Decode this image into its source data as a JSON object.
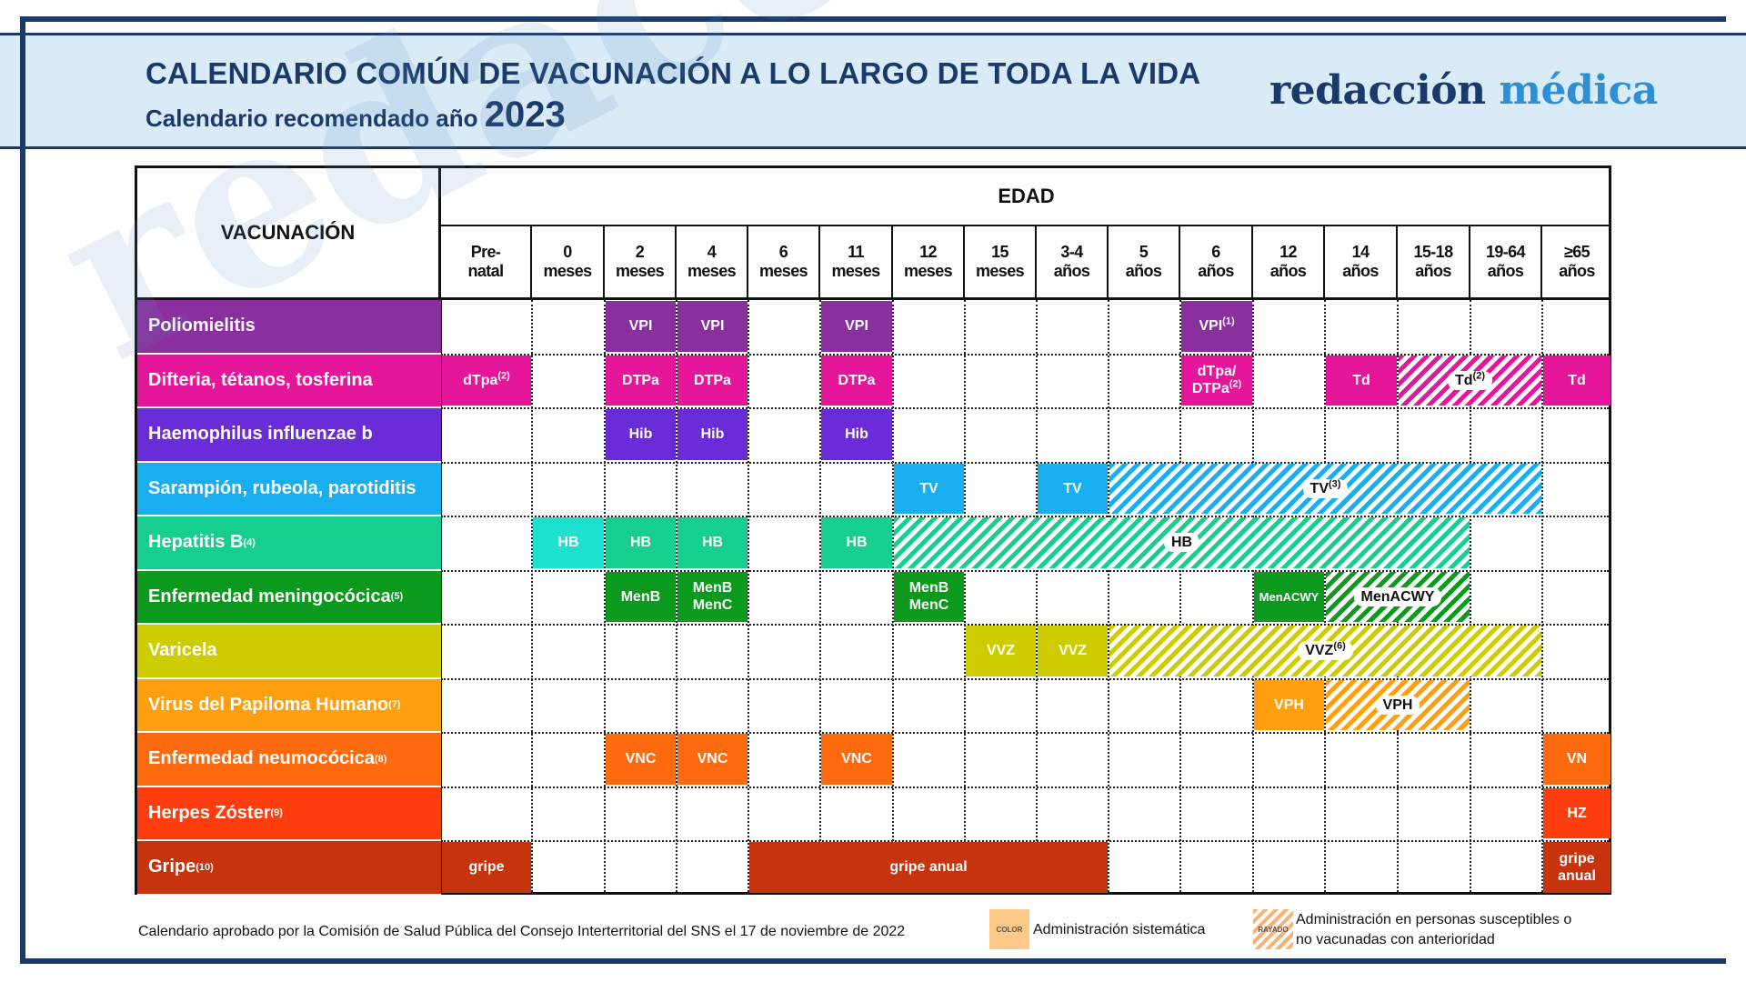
{
  "header": {
    "title": "CALENDARIO COMÚN DE VACUNACIÓN A LO LARGO DE TODA LA VIDA",
    "subtitle": "Calendario recomendado año",
    "year": "2023",
    "logo_part1": "redacción",
    "logo_part2": "médica"
  },
  "watermark": "redacción médica",
  "table": {
    "vac_header": "VACUNACIÓN",
    "edad_header": "EDAD",
    "ages": [
      {
        "l1": "Pre-",
        "l2": "natal"
      },
      {
        "l1": "0",
        "l2": "meses"
      },
      {
        "l1": "2",
        "l2": "meses"
      },
      {
        "l1": "4",
        "l2": "meses"
      },
      {
        "l1": "6",
        "l2": "meses"
      },
      {
        "l1": "11",
        "l2": "meses"
      },
      {
        "l1": "12",
        "l2": "meses"
      },
      {
        "l1": "15",
        "l2": "meses"
      },
      {
        "l1": "3-4",
        "l2": "años"
      },
      {
        "l1": "5",
        "l2": "años"
      },
      {
        "l1": "6",
        "l2": "años"
      },
      {
        "l1": "12",
        "l2": "años"
      },
      {
        "l1": "14",
        "l2": "años"
      },
      {
        "l1": "15-18",
        "l2": "años"
      },
      {
        "l1": "19-64",
        "l2": "años"
      },
      {
        "l1": "≥65",
        "l2": "años"
      }
    ],
    "rows": [
      {
        "label": "Poliomielitis",
        "sup": "",
        "color": "#8a2f9e"
      },
      {
        "label": "Difteria, tétanos, tosferina",
        "sup": "",
        "color": "#e6169b"
      },
      {
        "label": "Haemophilus influenzae b",
        "sup": "",
        "color": "#6a2bd9"
      },
      {
        "label": "Sarampión, rubeola, parotiditis",
        "sup": "",
        "color": "#19aef0"
      },
      {
        "label": "Hepatitis B",
        "sup": "(4)",
        "color": "#16cf8e"
      },
      {
        "label": "Enfermedad meningocócica",
        "sup": "(5)",
        "color": "#0c9a1e"
      },
      {
        "label": "Varicela",
        "sup": "",
        "color": "#cccc00"
      },
      {
        "label": "Virus del Papiloma Humano",
        "sup": "(7)",
        "color": "#ff9f0f"
      },
      {
        "label": "Enfermedad neumocócica",
        "sup": "(8)",
        "color": "#ff6a0f"
      },
      {
        "label": "Herpes Zóster",
        "sup": "(9)",
        "color": "#ff3d0f"
      },
      {
        "label": "Gripe",
        "sup": "(10)",
        "color": "#c7330d"
      }
    ],
    "cells": [
      {
        "row": 0,
        "from": 2,
        "to": 2,
        "text": "VPI",
        "color": "#8a2f9e",
        "style": "solid"
      },
      {
        "row": 0,
        "from": 3,
        "to": 3,
        "text": "VPI",
        "color": "#8a2f9e",
        "style": "solid"
      },
      {
        "row": 0,
        "from": 5,
        "to": 5,
        "text": "VPI",
        "color": "#8a2f9e",
        "style": "solid"
      },
      {
        "row": 0,
        "from": 10,
        "to": 10,
        "text": "VPI",
        "sup": "(1)",
        "color": "#8a2f9e",
        "style": "solid"
      },
      {
        "row": 1,
        "from": 0,
        "to": 0,
        "text": "dTpa",
        "sup": "(2)",
        "color": "#e6169b",
        "style": "solid"
      },
      {
        "row": 1,
        "from": 2,
        "to": 2,
        "text": "DTPa",
        "color": "#e6169b",
        "style": "solid"
      },
      {
        "row": 1,
        "from": 3,
        "to": 3,
        "text": "DTPa",
        "color": "#e6169b",
        "style": "solid"
      },
      {
        "row": 1,
        "from": 5,
        "to": 5,
        "text": "DTPa",
        "color": "#e6169b",
        "style": "solid"
      },
      {
        "row": 1,
        "from": 10,
        "to": 10,
        "text": "dTpa/",
        "text2": "DTPa",
        "sup": "(2)",
        "color": "#e6169b",
        "style": "solid"
      },
      {
        "row": 1,
        "from": 12,
        "to": 12,
        "text": "Td",
        "color": "#e6169b",
        "style": "solid"
      },
      {
        "row": 1,
        "from": 13,
        "to": 14,
        "text": "Td",
        "sup": "(2)",
        "color": "#e6169b",
        "style": "striped"
      },
      {
        "row": 1,
        "from": 15,
        "to": 15,
        "text": "Td",
        "color": "#e6169b",
        "style": "solid"
      },
      {
        "row": 2,
        "from": 2,
        "to": 2,
        "text": "Hib",
        "color": "#6a2bd9",
        "style": "solid"
      },
      {
        "row": 2,
        "from": 3,
        "to": 3,
        "text": "Hib",
        "color": "#6a2bd9",
        "style": "solid"
      },
      {
        "row": 2,
        "from": 5,
        "to": 5,
        "text": "Hib",
        "color": "#6a2bd9",
        "style": "solid"
      },
      {
        "row": 3,
        "from": 6,
        "to": 6,
        "text": "TV",
        "color": "#19aef0",
        "style": "solid"
      },
      {
        "row": 3,
        "from": 8,
        "to": 8,
        "text": "TV",
        "color": "#19aef0",
        "style": "solid"
      },
      {
        "row": 3,
        "from": 9,
        "to": 14,
        "text": "TV",
        "sup": "(3)",
        "color": "#19aef0",
        "style": "striped"
      },
      {
        "row": 4,
        "from": 1,
        "to": 1,
        "text": "HB",
        "color": "#1de0cf",
        "style": "solid"
      },
      {
        "row": 4,
        "from": 2,
        "to": 2,
        "text": "HB",
        "color": "#16cf8e",
        "style": "solid"
      },
      {
        "row": 4,
        "from": 3,
        "to": 3,
        "text": "HB",
        "color": "#16cf8e",
        "style": "solid"
      },
      {
        "row": 4,
        "from": 5,
        "to": 5,
        "text": "HB",
        "color": "#16cf8e",
        "style": "solid"
      },
      {
        "row": 4,
        "from": 6,
        "to": 13,
        "text": "HB",
        "color": "#16cf8e",
        "style": "striped"
      },
      {
        "row": 5,
        "from": 2,
        "to": 2,
        "text": "MenB",
        "color": "#0c9a1e",
        "style": "solid"
      },
      {
        "row": 5,
        "from": 3,
        "to": 3,
        "text": "MenB",
        "text2": "MenC",
        "color": "#0c9a1e",
        "style": "solid"
      },
      {
        "row": 5,
        "from": 6,
        "to": 6,
        "text": "MenB",
        "text2": "MenC",
        "color": "#0c9a1e",
        "style": "solid"
      },
      {
        "row": 5,
        "from": 11,
        "to": 11,
        "text": "MenACWY",
        "color": "#0c9a1e",
        "style": "solid",
        "small": true
      },
      {
        "row": 5,
        "from": 12,
        "to": 13,
        "text": "MenACWY",
        "color": "#0c9a1e",
        "style": "striped"
      },
      {
        "row": 6,
        "from": 7,
        "to": 7,
        "text": "VVZ",
        "color": "#cccc00",
        "style": "solid"
      },
      {
        "row": 6,
        "from": 8,
        "to": 8,
        "text": "VVZ",
        "color": "#cccc00",
        "style": "solid"
      },
      {
        "row": 6,
        "from": 9,
        "to": 14,
        "text": "VVZ",
        "sup": "(6)",
        "color": "#cccc00",
        "style": "striped"
      },
      {
        "row": 7,
        "from": 11,
        "to": 11,
        "text": "VPH",
        "color": "#ff9f0f",
        "style": "solid"
      },
      {
        "row": 7,
        "from": 12,
        "to": 13,
        "text": "VPH",
        "color": "#ff9f0f",
        "style": "striped"
      },
      {
        "row": 8,
        "from": 2,
        "to": 2,
        "text": "VNC",
        "color": "#ff6a0f",
        "style": "solid"
      },
      {
        "row": 8,
        "from": 3,
        "to": 3,
        "text": "VNC",
        "color": "#ff6a0f",
        "style": "solid"
      },
      {
        "row": 8,
        "from": 5,
        "to": 5,
        "text": "VNC",
        "color": "#ff6a0f",
        "style": "solid"
      },
      {
        "row": 8,
        "from": 15,
        "to": 15,
        "text": "VN",
        "color": "#ff6a0f",
        "style": "solid"
      },
      {
        "row": 9,
        "from": 15,
        "to": 15,
        "text": "HZ",
        "color": "#ff3d0f",
        "style": "solid"
      },
      {
        "row": 10,
        "from": 0,
        "to": 0,
        "text": "gripe",
        "color": "#c7330d",
        "style": "solid"
      },
      {
        "row": 10,
        "from": 4,
        "to": 8,
        "text": "gripe anual",
        "color": "#c7330d",
        "style": "solid"
      },
      {
        "row": 10,
        "from": 15,
        "to": 15,
        "text": "gripe",
        "text2": "anual",
        "color": "#c7330d",
        "style": "solid"
      }
    ]
  },
  "footer": {
    "note": "Calendario aprobado por la Comisión de Salud Pública del Consejo Interterritorial del SNS el 17 de noviembre de 2022",
    "legend_color_box": "COLOR",
    "legend_color_text": "Administración sistemática",
    "legend_stripe_box": "RAYADO",
    "legend_stripe_text1": "Administración en personas susceptibles o",
    "legend_stripe_text2": "no vacunadas con anterioridad",
    "legend_color": "#ffc988",
    "legend_stripe_color": "#ffb070"
  }
}
